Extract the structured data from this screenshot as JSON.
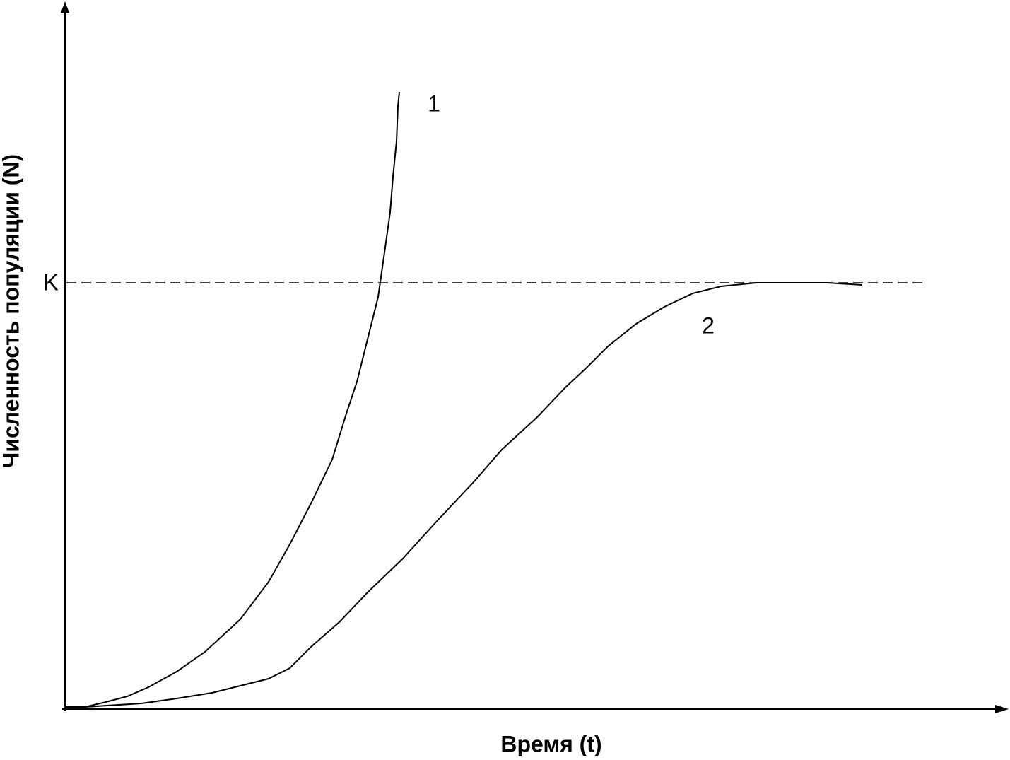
{
  "axes": {
    "y_label": "Численность популяции (N)",
    "x_label": "Время (t)",
    "k_label": "K"
  },
  "curves": [
    {
      "label": "1"
    },
    {
      "label": "2"
    }
  ]
}
